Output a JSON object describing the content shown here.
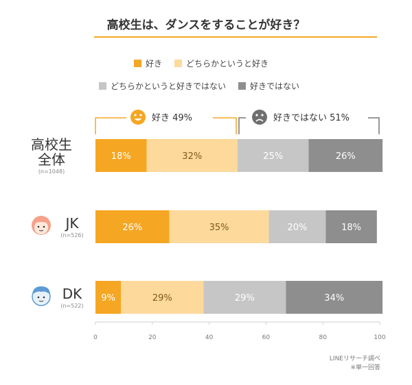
{
  "title": "高校生は、ダンスをすることが好き？",
  "legend": [
    {
      "label": "好き",
      "color": "#f5a623"
    },
    {
      "label": "どちらかというと好き",
      "color": "#fdd99b"
    },
    {
      "label": "どちらかというと好きではない",
      "color": "#c6c6c6"
    },
    {
      "label": "好きではない",
      "color": "#8e8e8e"
    }
  ],
  "summary": {
    "like_text": "好き 49%",
    "dislike_text": "好きではない 51%"
  },
  "rows": [
    {
      "name": "高校生\n全体",
      "n": "(n=1048)"
    },
    {
      "name": "JK",
      "n": "(n=526)"
    },
    {
      "name": "DK",
      "n": "(n=522)"
    }
  ],
  "source": {
    "line1": "LINEリサーチ調べ",
    "line2": "※単一回答"
  },
  "chart_data": {
    "type": "bar",
    "orientation": "horizontal",
    "stacked": true,
    "percent_suffix": "%",
    "title": "高校生は、ダンスをすることが好き？",
    "categories": [
      "高校生全体",
      "JK",
      "DK"
    ],
    "series": [
      {
        "name": "好き",
        "values": [
          18,
          26,
          9
        ],
        "color": "#f5a623"
      },
      {
        "name": "どちらかというと好き",
        "values": [
          32,
          35,
          29
        ],
        "color": "#fdd99b"
      },
      {
        "name": "どちらかというと好きではない",
        "values": [
          25,
          20,
          29
        ],
        "color": "#c6c6c6"
      },
      {
        "name": "好きではない",
        "values": [
          26,
          18,
          34
        ],
        "color": "#8e8e8e"
      }
    ],
    "xlim": [
      0,
      100
    ],
    "xticks": [
      0,
      20,
      40,
      60,
      80,
      100
    ]
  }
}
